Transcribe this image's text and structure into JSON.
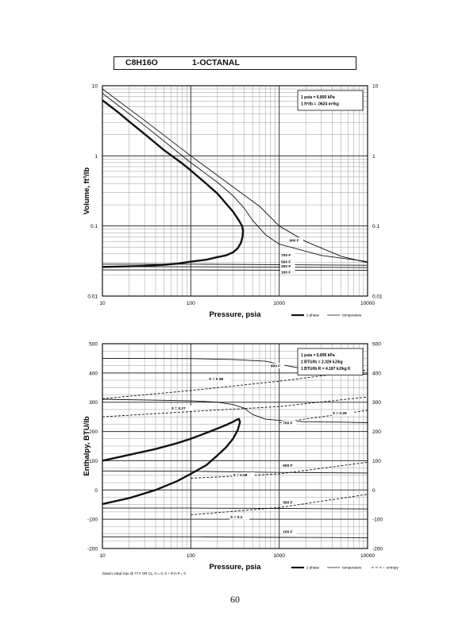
{
  "header": {
    "formula": "C8H16O",
    "compound": "1-OCTANAL"
  },
  "page_number": "60",
  "chart_data": [
    {
      "type": "line",
      "title": "C8H16O 1-OCTANAL",
      "xlabel": "Pressure, psia",
      "ylabel": "Volume, ft^3/lb",
      "xscale": "log",
      "yscale": "log",
      "xlim": [
        10,
        10000
      ],
      "ylim": [
        0.01,
        10
      ],
      "x_ticks": [
        "10",
        "100",
        "1000",
        "10000"
      ],
      "y_ticks": [
        "0.01",
        "0.1",
        "1",
        "10"
      ],
      "grid": true,
      "legend_position": "bottom-right",
      "legend": [
        {
          "label": "2 phase",
          "style": "thick"
        },
        {
          "label": "temperature",
          "style": "thin"
        }
      ],
      "info_box": [
        "1 psia = 6.895 kPa",
        "1 ft^3/lb = .0624 m^3/kg"
      ],
      "series": [
        {
          "name": "2 phase",
          "style": "thick",
          "x": [
            10,
            15,
            20,
            30,
            50,
            80,
            100,
            150,
            200,
            300,
            350,
            380,
            390,
            385,
            370,
            340,
            300,
            250,
            200,
            150,
            100,
            70,
            50,
            30,
            20,
            10
          ],
          "y": [
            6.2,
            4.2,
            3.1,
            2.05,
            1.2,
            0.78,
            0.62,
            0.4,
            0.29,
            0.16,
            0.12,
            0.1,
            0.085,
            0.07,
            0.058,
            0.048,
            0.042,
            0.038,
            0.036,
            0.033,
            0.031,
            0.029,
            0.028,
            0.027,
            0.0265,
            0.026
          ]
        },
        {
          "name": "900 F",
          "style": "thin",
          "x": [
            10,
            30,
            100,
            300,
            600,
            1000,
            2000,
            5000,
            10000
          ],
          "y": [
            9,
            3.2,
            1.0,
            0.36,
            0.19,
            0.1,
            0.06,
            0.037,
            0.03
          ]
        },
        {
          "name": "700 F",
          "style": "thin",
          "x": [
            10,
            30,
            100,
            200,
            300,
            400,
            500,
            700,
            1000,
            3000,
            10000
          ],
          "y": [
            7.8,
            2.7,
            0.8,
            0.42,
            0.27,
            0.18,
            0.12,
            0.075,
            0.055,
            0.038,
            0.031
          ]
        },
        {
          "name": "500 F",
          "style": "thin",
          "x": [
            10,
            100,
            10000
          ],
          "y": [
            0.0285,
            0.0285,
            0.0275
          ]
        },
        {
          "name": "300 F",
          "style": "thin",
          "x": [
            10,
            100,
            10000
          ],
          "y": [
            0.0262,
            0.0262,
            0.0255
          ]
        },
        {
          "name": "100 F",
          "style": "thin",
          "x": [
            10,
            100,
            10000
          ],
          "y": [
            0.0236,
            0.0236,
            0.0233
          ]
        }
      ],
      "curve_labels": [
        {
          "text": "900 F",
          "x": 1300,
          "y": 0.06
        },
        {
          "text": "700 F",
          "x": 1050,
          "y": 0.037
        },
        {
          "text": "500 F",
          "x": 1050,
          "y": 0.0295
        },
        {
          "text": "300 F",
          "x": 1050,
          "y": 0.0255
        },
        {
          "text": "100 F",
          "x": 1050,
          "y": 0.021
        }
      ]
    },
    {
      "type": "line",
      "xlabel": "Pressure, psia",
      "ylabel": "Enthalpy, BTU/lb",
      "xscale": "log",
      "xlim": [
        10,
        10000
      ],
      "ylim": [
        -200,
        500
      ],
      "x_ticks": [
        "10",
        "100",
        "1000",
        "10000"
      ],
      "y_ticks": [
        "-200",
        "-100",
        "0",
        "100",
        "200",
        "300",
        "400",
        "500"
      ],
      "grid": true,
      "legend_position": "bottom-right",
      "legend": [
        {
          "label": "2 phase",
          "style": "thick"
        },
        {
          "label": "temperature",
          "style": "thin"
        },
        {
          "label": "entropy",
          "style": "dashed"
        }
      ],
      "info_box": [
        "1 psia = 6.895 kPa",
        "1 BTU/lb = 2.326 kJ/kg",
        "1 BTU/lb R = 4.187 kJ/kg K"
      ],
      "footnote": "Datum: Ideal Gas @ 77 F OR CL, H = 0, S + R ln P = 0",
      "series": [
        {
          "name": "2 phase",
          "style": "thick",
          "x": [
            10,
            20,
            40,
            70,
            100,
            150,
            200,
            250,
            300,
            330,
            350,
            360,
            340,
            300,
            250,
            200,
            150,
            100,
            70,
            40,
            20,
            10
          ],
          "y": [
            100,
            120,
            140,
            160,
            175,
            195,
            210,
            222,
            233,
            240,
            243,
            232,
            205,
            175,
            145,
            118,
            85,
            55,
            30,
            0,
            -28,
            -48
          ]
        },
        {
          "name": "900 F",
          "style": "thin",
          "x": [
            10,
            100,
            300,
            700,
            1000,
            2000,
            5000,
            10000
          ],
          "y": [
            450,
            449,
            446,
            440,
            430,
            412,
            400,
            395
          ]
        },
        {
          "name": "700 F",
          "style": "thin",
          "x": [
            10,
            100,
            200,
            300,
            400,
            500,
            700,
            1000,
            2000,
            5000,
            10000
          ],
          "y": [
            310,
            305,
            300,
            292,
            280,
            258,
            242,
            238,
            233,
            232,
            230
          ]
        },
        {
          "name": "500 F",
          "style": "thin",
          "x": [
            10,
            100,
            1000,
            10000
          ],
          "y": [
            65,
            64,
            60,
            58
          ]
        },
        {
          "name": "300 F",
          "style": "thin",
          "x": [
            10,
            100,
            1000,
            10000
          ],
          "y": [
            -62,
            -62,
            -63,
            -65
          ]
        },
        {
          "name": "100 F",
          "style": "thin",
          "x": [
            10,
            100,
            1000,
            10000
          ],
          "y": [
            -160,
            -160,
            -162,
            -163
          ]
        },
        {
          "name": "S = 0.38",
          "style": "dashed",
          "x": [
            10,
            100,
            1000,
            10000
          ],
          "y": [
            312,
            340,
            372,
            410
          ]
        },
        {
          "name": "S = 0.27",
          "style": "dashed",
          "x": [
            10,
            100,
            1000,
            10000
          ],
          "y": [
            250,
            268,
            285,
            318
          ]
        },
        {
          "name": "S = 0.25",
          "style": "dashed",
          "x": [
            1000,
            3000,
            10000
          ],
          "y": [
            230,
            250,
            272
          ]
        },
        {
          "name": "S = 0.08",
          "style": "dashed",
          "x": [
            100,
            1000,
            10000
          ],
          "y": [
            40,
            55,
            95
          ]
        },
        {
          "name": "S = 0.1",
          "style": "dashed",
          "x": [
            100,
            1000,
            10000
          ],
          "y": [
            -85,
            -60,
            -15
          ]
        }
      ],
      "curve_labels": [
        {
          "text": "900 F",
          "x": 800,
          "y": 420
        },
        {
          "text": "700 F",
          "x": 1100,
          "y": 224
        },
        {
          "text": "500 F",
          "x": 1100,
          "y": 80
        },
        {
          "text": "300 F",
          "x": 1100,
          "y": -47
        },
        {
          "text": "100 F",
          "x": 1100,
          "y": -147
        },
        {
          "text": "S = 0.38",
          "x": 160,
          "y": 375
        },
        {
          "text": "S = 0.27",
          "x": 60,
          "y": 275
        },
        {
          "text": "S = 0.25",
          "x": 4000,
          "y": 258
        },
        {
          "text": "S = 0.08",
          "x": 300,
          "y": 47
        },
        {
          "text": "S = 0.1",
          "x": 280,
          "y": -97
        }
      ]
    }
  ]
}
